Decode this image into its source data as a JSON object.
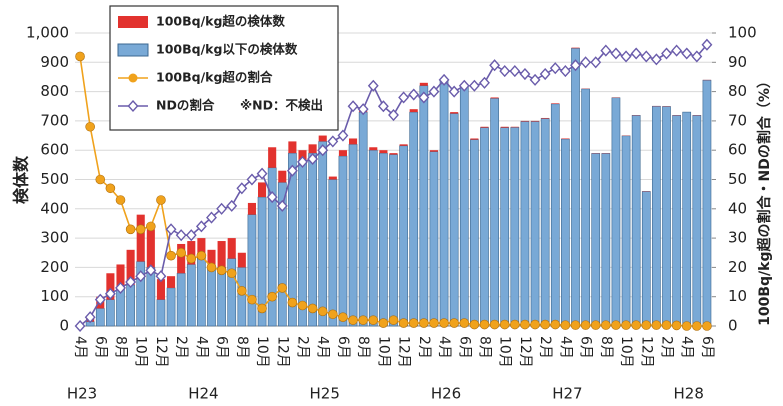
{
  "chart_data": {
    "type": "bar-line",
    "y_label": "検体数",
    "y2_label": "100Bq/kg超の割合・NDの割合（%）",
    "categories": [
      "4月",
      null,
      "6月",
      null,
      "8月",
      null,
      "10月",
      null,
      "12月",
      null,
      "2月",
      null,
      "4月",
      null,
      "6月",
      null,
      "8月",
      null,
      "10月",
      null,
      "12月",
      null,
      "2月",
      null,
      "4月",
      null,
      "6月",
      null,
      "8月",
      null,
      "10月",
      null,
      "12月",
      null,
      "2月",
      null,
      "4月",
      null,
      "6月",
      null,
      "8月",
      null,
      "10月",
      null,
      "12月",
      null,
      "2月",
      null,
      "4月",
      null,
      "6月",
      null,
      "8月",
      null,
      "10月",
      null,
      "12月",
      null,
      "2月",
      null,
      "4月",
      null,
      "6月"
    ],
    "groups": [
      {
        "label": "H23",
        "index": 0
      },
      {
        "label": "H24",
        "index": 12
      },
      {
        "label": "H25",
        "index": 24
      },
      {
        "label": "H26",
        "index": 36
      },
      {
        "label": "H27",
        "index": 48
      },
      {
        "label": "H28",
        "index": 60
      }
    ],
    "ylim": [
      0,
      1000
    ],
    "yticks": [
      0,
      100,
      200,
      300,
      400,
      500,
      600,
      700,
      800,
      900,
      {
        "value": 1000,
        "label": "1,000"
      }
    ],
    "y2lim": [
      0,
      100
    ],
    "y2ticks": [
      0,
      10,
      20,
      30,
      40,
      50,
      60,
      70,
      80,
      90,
      100
    ],
    "grid": true,
    "legend_note": "※ND：不検出",
    "series": [
      {
        "name": "100Bq/kg超の検体数",
        "kind": "bar",
        "stack": 1,
        "color": "#e2322e",
        "values": [
          5,
          15,
          40,
          90,
          80,
          120,
          160,
          130,
          70,
          40,
          100,
          80,
          60,
          60,
          90,
          70,
          50,
          40,
          50,
          70,
          40,
          40,
          40,
          30,
          20,
          10,
          20,
          20,
          10,
          10,
          10,
          5,
          5,
          10,
          10,
          5,
          5,
          5,
          5,
          4,
          3,
          3,
          3,
          2,
          2,
          2,
          2,
          2,
          2,
          2,
          1,
          1,
          1,
          1,
          1,
          1,
          1,
          1,
          1,
          1,
          0,
          1,
          1
        ]
      },
      {
        "name": "100Bq/kg以下の検体数",
        "kind": "bar",
        "stack": 0,
        "color": "#79a9d6",
        "values": [
          0,
          15,
          60,
          90,
          130,
          140,
          220,
          200,
          90,
          130,
          180,
          210,
          240,
          200,
          200,
          230,
          200,
          380,
          440,
          540,
          490,
          590,
          560,
          590,
          630,
          500,
          580,
          620,
          730,
          600,
          590,
          585,
          615,
          730,
          820,
          595,
          835,
          725,
          815,
          636,
          677,
          777,
          677,
          678,
          698,
          698,
          708,
          758,
          638,
          948,
          809,
          589,
          589,
          779,
          649,
          719,
          459,
          750,
          749,
          719,
          730,
          719,
          839
        ]
      },
      {
        "name": "100Bq/kg超の割合",
        "kind": "line",
        "axis": "y2",
        "marker": "circle",
        "color": "#f0a21c",
        "values": [
          92,
          68,
          50,
          47,
          43,
          33,
          33,
          34,
          43,
          24,
          25,
          23,
          24,
          20,
          19,
          18,
          12,
          9,
          6,
          10,
          13,
          8,
          7,
          6,
          5,
          4,
          3,
          2,
          2,
          2,
          1,
          2,
          1,
          1,
          1,
          1,
          1,
          1,
          1,
          0.5,
          0.5,
          0.5,
          0.5,
          0.5,
          0.5,
          0.5,
          0.5,
          0.5,
          0.3,
          0.3,
          0.3,
          0.3,
          0.3,
          0.3,
          0.3,
          0.3,
          0.3,
          0.3,
          0.3,
          0.2,
          0,
          0,
          0
        ]
      },
      {
        "name": "NDの割合",
        "kind": "line",
        "axis": "y2",
        "marker": "diamond",
        "color": "#6a5cab",
        "values": [
          0,
          3,
          9,
          11,
          13,
          15,
          17,
          19,
          17,
          33,
          31,
          31,
          34,
          37,
          40,
          41,
          47,
          50,
          52,
          44,
          41,
          53,
          56,
          57,
          60,
          63,
          65,
          75,
          74,
          82,
          75,
          72,
          78,
          79,
          78,
          80,
          84,
          80,
          82,
          82,
          83,
          89,
          87,
          87,
          86,
          84,
          86,
          88,
          87,
          89,
          90,
          90,
          94,
          93,
          92,
          93,
          92,
          91,
          93,
          94,
          93,
          92,
          96
        ]
      }
    ]
  }
}
